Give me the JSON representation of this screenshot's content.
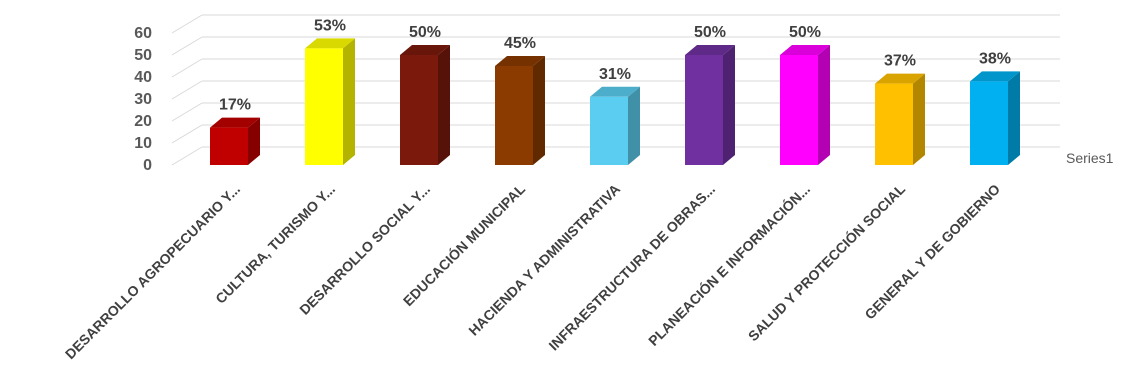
{
  "chart_data": {
    "type": "bar",
    "style": "3d-column",
    "categories": [
      "DESARROLLO AGROPECUARIO Y...",
      "CULTURA, TURISMO Y...",
      "DESARROLLO SOCIAL Y...",
      "EDUCACIÓN MUNICIPAL",
      "HACIENDA Y ADMINISTRATIVA",
      "INFRAESTRUCTURA DE OBRAS...",
      "PLANEACIÓN E INFORMACIÓN...",
      "SALUD Y PROTECCIÓN SOCIAL",
      "GENERAL Y DE GOBIERNO"
    ],
    "series": [
      {
        "name": "Series1",
        "values": [
          17,
          53,
          50,
          45,
          31,
          50,
          50,
          37,
          38
        ],
        "labels": [
          "17%",
          "53%",
          "50%",
          "45%",
          "31%",
          "50%",
          "50%",
          "37%",
          "38%"
        ],
        "colors": [
          "#c00000",
          "#ffff00",
          "#7b1a0c",
          "#8b3a00",
          "#5bcdf0",
          "#7030a0",
          "#ff00ff",
          "#ffc000",
          "#00b0f0"
        ]
      }
    ],
    "ylim": [
      0,
      60
    ],
    "yticks": [
      0,
      10,
      20,
      30,
      40,
      50,
      60
    ],
    "grid": true,
    "legend": "right"
  }
}
